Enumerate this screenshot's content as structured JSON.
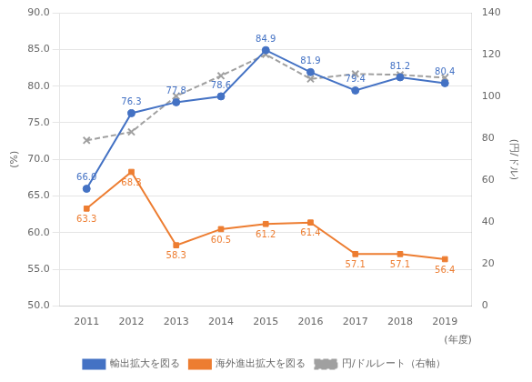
{
  "chart_data": {
    "type": "line",
    "x": [
      2011,
      2012,
      2013,
      2014,
      2015,
      2016,
      2017,
      2018,
      2019
    ],
    "xlim": [
      2010.4,
      2019.6
    ],
    "xticks": [
      2011,
      2012,
      2013,
      2014,
      2015,
      2016,
      2017,
      2018,
      2019
    ],
    "xlabel": "(年度)",
    "ylabel": "(%)",
    "y2label": "(円/ドル)",
    "ylim": [
      50.0,
      90.0
    ],
    "yticks": [
      {
        "value": 50.0,
        "label": "50.0"
      },
      {
        "value": 55.0,
        "label": "55.0"
      },
      {
        "value": 60.0,
        "label": "60.0"
      },
      {
        "value": 65.0,
        "label": "65.0"
      },
      {
        "value": 70.0,
        "label": "70.0"
      },
      {
        "value": 75.0,
        "label": "75.0"
      },
      {
        "value": 80.0,
        "label": "80.0"
      },
      {
        "value": 85.0,
        "label": "85.0"
      },
      {
        "value": 90.0,
        "label": "90.0"
      }
    ],
    "y2lim": [
      0,
      140
    ],
    "y2ticks": [
      0,
      20,
      40,
      60,
      80,
      100,
      120,
      140
    ],
    "grid": true,
    "legend": "bottom",
    "series": [
      {
        "name": "輸出拡大を図る",
        "color": "#4472C4",
        "marker": "circle",
        "line_style": "solid",
        "values": [
          66.0,
          76.3,
          77.8,
          78.6,
          84.9,
          81.9,
          79.4,
          81.2,
          80.4
        ],
        "data_labels": true,
        "value_labels": [
          "66.0",
          "76.3",
          "77.8",
          "78.6",
          "84.9",
          "81.9",
          "79.4",
          "81.2",
          "80.4"
        ]
      },
      {
        "name": "海外進出拡大を図る",
        "color": "#ED7D31",
        "marker": "square",
        "line_style": "solid",
        "values": [
          63.3,
          68.3,
          58.3,
          60.5,
          61.2,
          61.4,
          57.1,
          57.1,
          56.4
        ],
        "data_labels": true,
        "value_labels": [
          "63.3",
          "68.3",
          "58.3",
          "60.5",
          "61.2",
          "61.4",
          "57.1",
          "57.1",
          "56.4"
        ]
      },
      {
        "name": "円/ドルレート（右軸）",
        "color": "#A0A0A0",
        "marker": "x",
        "line_style": "dashed",
        "axis": "y2",
        "values": [
          79.1,
          83.1,
          100.2,
          109.9,
          120.1,
          108.4,
          110.8,
          110.4,
          109.0
        ]
      }
    ]
  }
}
